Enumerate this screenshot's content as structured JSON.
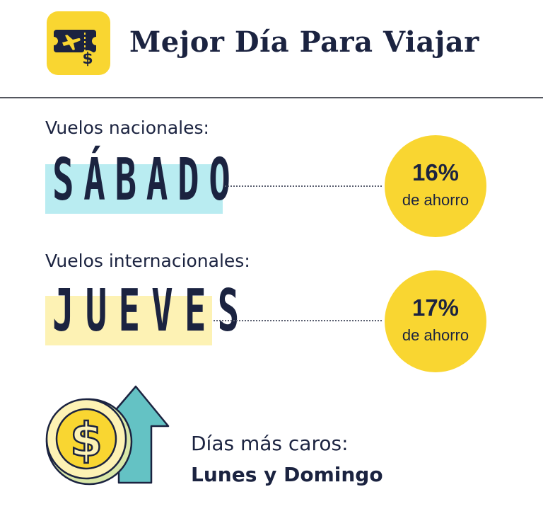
{
  "header": {
    "title": "Mejor Día Para Viajar",
    "icon": "plane-ticket-dollar-icon"
  },
  "domestic": {
    "label": "Vuelos nacionales:",
    "day": "SÁBADO",
    "percent": "16%",
    "saving": "de ahorro",
    "highlight_color": "#b9ecf1"
  },
  "international": {
    "label": "Vuelos internacionales:",
    "day": "JUEVES",
    "percent": "17%",
    "saving": "de ahorro",
    "highlight_color": "#fdf2b4"
  },
  "expensive": {
    "label": "Días más caros:",
    "days": "Lunes y Domingo",
    "icon": "dollar-coin-arrow-up-icon"
  },
  "colors": {
    "accent_yellow": "#f9d631",
    "text_dark": "#1b2340",
    "teal": "#64c2c4"
  }
}
